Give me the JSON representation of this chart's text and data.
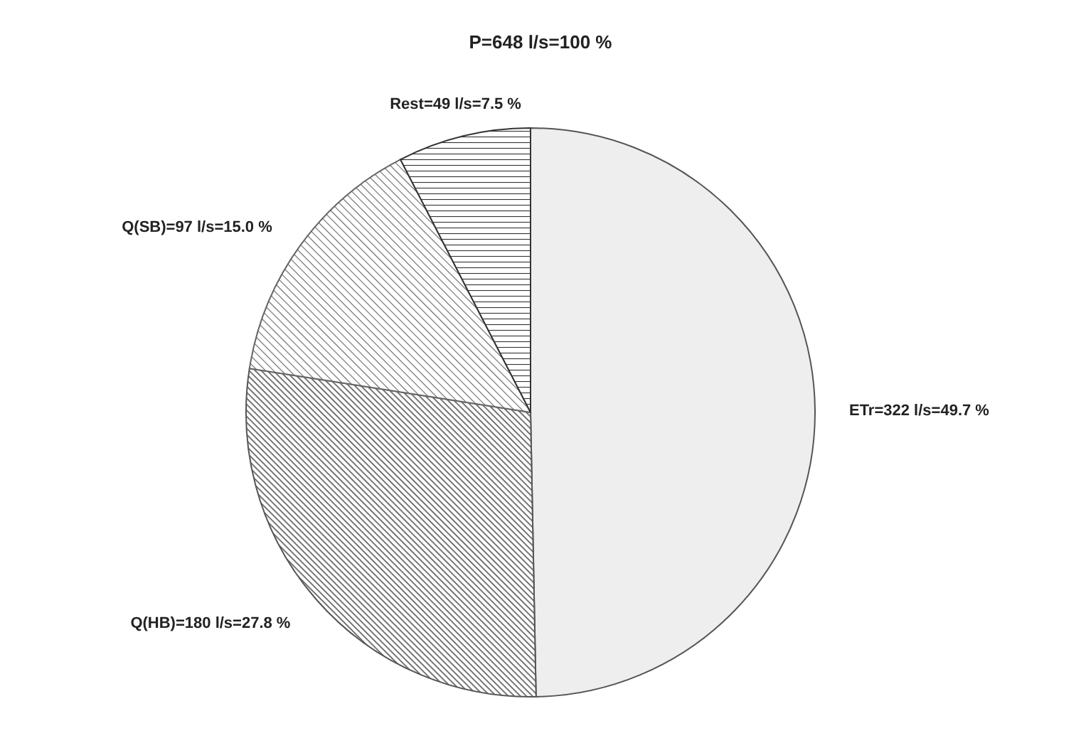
{
  "chart_data": {
    "type": "pie",
    "title": "P=648 l/s=100 %",
    "categories": [
      "ETr",
      "Q(HB)",
      "Q(SB)",
      "Rest"
    ],
    "values": [
      322,
      180,
      97,
      49
    ],
    "value_labels": [
      "=322 l/s=49.7 %",
      "=180 l/s=27.8 %",
      "=97 l/s=15.0 %",
      "=49 l/s=7.5 %"
    ],
    "colors": [
      "#eeeeee",
      "#555555",
      "#666666",
      "#333333"
    ]
  }
}
